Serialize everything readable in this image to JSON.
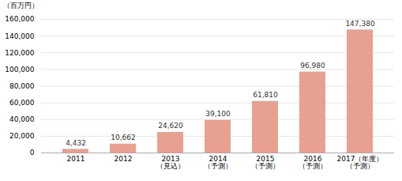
{
  "chart_data": {
    "type": "bar",
    "ylabel": "（百万円）",
    "categories": [
      "2011",
      "2012",
      "2013\n（見込）",
      "2014\n（予測）",
      "2015\n（予測）",
      "2016\n（予測）",
      "2017（年度）\n（予測）"
    ],
    "values": [
      4432,
      10662,
      24620,
      39100,
      61810,
      96980,
      147380
    ],
    "value_labels": [
      "4,432",
      "10,662",
      "24,620",
      "39,100",
      "61,810",
      "96,980",
      "147,380"
    ],
    "data_labels": true,
    "color": "#e8a090",
    "ylim": [
      0,
      160000
    ],
    "yticks": [
      0,
      {
        "value": 20000,
        "label": "20,000"
      },
      {
        "value": 40000,
        "label": "40,000"
      },
      {
        "value": 60000,
        "label": "60,000"
      },
      {
        "value": 80000,
        "label": "80,000"
      },
      {
        "value": 100000,
        "label": "100,000"
      },
      {
        "value": 120000,
        "label": "120,000"
      },
      {
        "value": 140000,
        "label": "140,000"
      },
      {
        "value": 160000,
        "label": "160,000"
      }
    ],
    "grid": true
  }
}
